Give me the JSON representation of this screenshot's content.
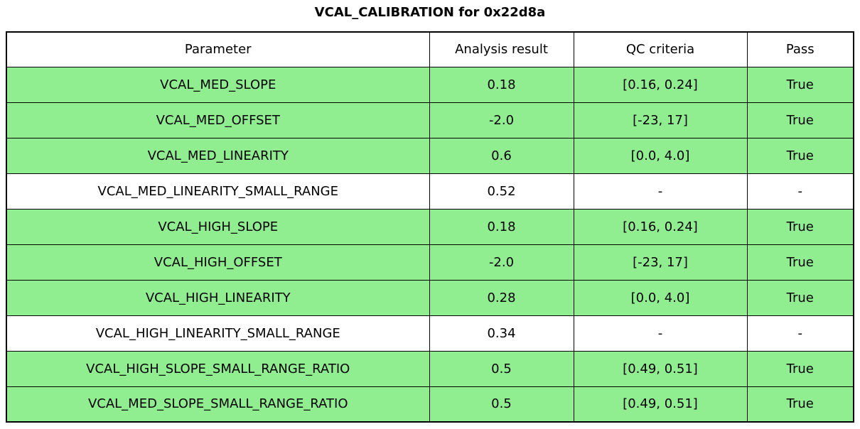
{
  "title": "VCAL_CALIBRATION for 0x22d8a",
  "colors": {
    "pass_row_bg": "#90ee90",
    "default_row_bg": "#ffffff",
    "border": "#000000",
    "text": "#000000"
  },
  "chart_data": {
    "type": "table",
    "title": "VCAL_CALIBRATION for 0x22d8a",
    "columns": [
      "Parameter",
      "Analysis result",
      "QC criteria",
      "Pass"
    ],
    "rows": [
      {
        "parameter": "VCAL_MED_SLOPE",
        "analysis_result": "0.18",
        "qc_criteria": "[0.16, 0.24]",
        "pass": "True",
        "highlighted": true
      },
      {
        "parameter": "VCAL_MED_OFFSET",
        "analysis_result": "-2.0",
        "qc_criteria": "[-23, 17]",
        "pass": "True",
        "highlighted": true
      },
      {
        "parameter": "VCAL_MED_LINEARITY",
        "analysis_result": "0.6",
        "qc_criteria": "[0.0, 4.0]",
        "pass": "True",
        "highlighted": true
      },
      {
        "parameter": "VCAL_MED_LINEARITY_SMALL_RANGE",
        "analysis_result": "0.52",
        "qc_criteria": "-",
        "pass": "-",
        "highlighted": false
      },
      {
        "parameter": "VCAL_HIGH_SLOPE",
        "analysis_result": "0.18",
        "qc_criteria": "[0.16, 0.24]",
        "pass": "True",
        "highlighted": true
      },
      {
        "parameter": "VCAL_HIGH_OFFSET",
        "analysis_result": "-2.0",
        "qc_criteria": "[-23, 17]",
        "pass": "True",
        "highlighted": true
      },
      {
        "parameter": "VCAL_HIGH_LINEARITY",
        "analysis_result": "0.28",
        "qc_criteria": "[0.0, 4.0]",
        "pass": "True",
        "highlighted": true
      },
      {
        "parameter": "VCAL_HIGH_LINEARITY_SMALL_RANGE",
        "analysis_result": "0.34",
        "qc_criteria": "-",
        "pass": "-",
        "highlighted": false
      },
      {
        "parameter": "VCAL_HIGH_SLOPE_SMALL_RANGE_RATIO",
        "analysis_result": "0.5",
        "qc_criteria": "[0.49, 0.51]",
        "pass": "True",
        "highlighted": true
      },
      {
        "parameter": "VCAL_MED_SLOPE_SMALL_RANGE_RATIO",
        "analysis_result": "0.5",
        "qc_criteria": "[0.49, 0.51]",
        "pass": "True",
        "highlighted": true
      }
    ]
  }
}
